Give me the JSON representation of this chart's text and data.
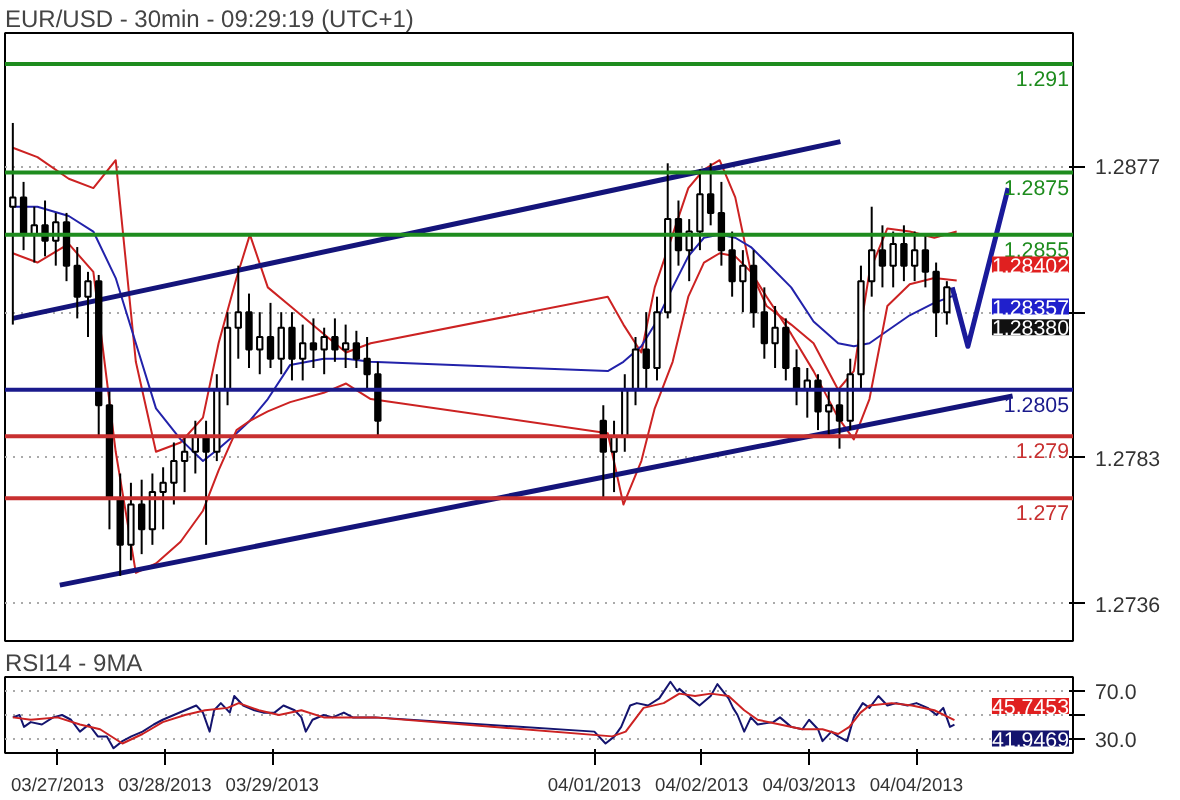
{
  "chart_data": [
    {
      "type": "candlestick",
      "title": "EUR/USD - 30min - 09:29:19 (UTC+1)",
      "color": "#000000",
      "x": [
        "2013-03-26T14:00",
        "2013-03-26T16:24",
        "2013-03-26T18:48",
        "2013-03-26T21:12",
        "2013-03-26T23:36",
        "2013-03-27T02:00",
        "2013-03-27T04:24",
        "2013-03-27T06:48",
        "2013-03-27T09:12",
        "2013-03-27T11:36",
        "2013-03-27T14:00",
        "2013-03-27T16:24",
        "2013-03-27T18:48",
        "2013-03-27T21:12",
        "2013-03-27T23:36",
        "2013-03-28T02:00",
        "2013-03-28T04:24",
        "2013-03-28T06:48",
        "2013-03-28T09:12",
        "2013-03-28T11:36",
        "2013-03-28T14:00",
        "2013-03-28T16:24",
        "2013-03-28T18:48",
        "2013-03-28T21:12",
        "2013-03-28T23:36",
        "2013-03-29T02:00",
        "2013-03-29T04:24",
        "2013-03-29T06:48",
        "2013-03-29T09:12",
        "2013-03-29T11:36",
        "2013-03-29T14:00",
        "2013-03-29T16:24",
        "2013-03-29T18:48",
        "2013-03-29T21:12",
        "2013-03-29T23:36",
        "2013-04-01T02:00",
        "2013-04-01T04:24",
        "2013-04-01T06:48",
        "2013-04-01T09:12",
        "2013-04-01T11:36",
        "2013-04-01T14:00",
        "2013-04-01T16:24",
        "2013-04-01T18:48",
        "2013-04-01T21:12",
        "2013-04-01T23:36",
        "2013-04-02T02:00",
        "2013-04-02T04:24",
        "2013-04-02T06:48",
        "2013-04-02T09:12",
        "2013-04-02T11:36",
        "2013-04-02T14:00",
        "2013-04-02T16:24",
        "2013-04-02T18:48",
        "2013-04-02T21:12",
        "2013-04-02T23:36",
        "2013-04-03T02:00",
        "2013-04-03T04:24",
        "2013-04-03T06:48",
        "2013-04-03T09:12",
        "2013-04-03T11:36",
        "2013-04-03T14:00",
        "2013-04-03T16:24",
        "2013-04-03T18:48",
        "2013-04-03T21:12",
        "2013-04-03T23:36",
        "2013-04-04T02:00",
        "2013-04-04T04:24",
        "2013-04-04T06:48"
      ],
      "ohlc": [
        [
          1.2864,
          1.2891,
          1.2826,
          1.2867
        ],
        [
          1.2867,
          1.2872,
          1.285,
          1.2855
        ],
        [
          1.2855,
          1.2864,
          1.2846,
          1.2858
        ],
        [
          1.2858,
          1.2866,
          1.2848,
          1.2853
        ],
        [
          1.2853,
          1.2862,
          1.2845,
          1.2859
        ],
        [
          1.2859,
          1.2862,
          1.284,
          1.2845
        ],
        [
          1.2845,
          1.2851,
          1.2828,
          1.2835
        ],
        [
          1.2835,
          1.2843,
          1.2822,
          1.284
        ],
        [
          1.284,
          1.2842,
          1.279,
          1.28
        ],
        [
          1.28,
          1.2805,
          1.276,
          1.277
        ],
        [
          1.277,
          1.2778,
          1.2745,
          1.2755
        ],
        [
          1.2755,
          1.2775,
          1.275,
          1.2768
        ],
        [
          1.2768,
          1.2776,
          1.2752,
          1.276
        ],
        [
          1.276,
          1.2778,
          1.2755,
          1.2772
        ],
        [
          1.2772,
          1.278,
          1.276,
          1.2775
        ],
        [
          1.2775,
          1.2788,
          1.2768,
          1.2782
        ],
        [
          1.2782,
          1.279,
          1.2772,
          1.2785
        ],
        [
          1.2785,
          1.2795,
          1.2778,
          1.279
        ],
        [
          1.279,
          1.2795,
          1.2755,
          1.2785
        ],
        [
          1.2785,
          1.281,
          1.2782,
          1.2805
        ],
        [
          1.2805,
          1.283,
          1.28,
          1.2825
        ],
        [
          1.2825,
          1.2845,
          1.2815,
          1.283
        ],
        [
          1.283,
          1.2836,
          1.2812,
          1.2818
        ],
        [
          1.2818,
          1.283,
          1.281,
          1.2822
        ],
        [
          1.2822,
          1.2833,
          1.2812,
          1.2815
        ],
        [
          1.2815,
          1.283,
          1.281,
          1.2825
        ],
        [
          1.2825,
          1.283,
          1.2808,
          1.2815
        ],
        [
          1.2815,
          1.2826,
          1.2808,
          1.282
        ],
        [
          1.282,
          1.2828,
          1.2812,
          1.2818
        ],
        [
          1.2818,
          1.2825,
          1.281,
          1.2822
        ],
        [
          1.2822,
          1.2828,
          1.2814,
          1.2818
        ],
        [
          1.2818,
          1.2826,
          1.2812,
          1.282
        ],
        [
          1.282,
          1.2824,
          1.2812,
          1.2815
        ],
        [
          1.2815,
          1.2822,
          1.2805,
          1.281
        ],
        [
          1.281,
          1.2814,
          1.279,
          1.2795
        ],
        [
          1.2795,
          1.28,
          1.277,
          1.2785
        ],
        [
          1.2785,
          1.2795,
          1.2772,
          1.279
        ],
        [
          1.279,
          1.281,
          1.2785,
          1.2805
        ],
        [
          1.2805,
          1.2822,
          1.28,
          1.2818
        ],
        [
          1.2818,
          1.283,
          1.2805,
          1.2812
        ],
        [
          1.2812,
          1.2835,
          1.2808,
          1.283
        ],
        [
          1.283,
          1.2878,
          1.2828,
          1.286
        ],
        [
          1.286,
          1.2866,
          1.2845,
          1.285
        ],
        [
          1.285,
          1.286,
          1.284,
          1.2856
        ],
        [
          1.2856,
          1.2876,
          1.285,
          1.2868
        ],
        [
          1.2868,
          1.2878,
          1.2858,
          1.2862
        ],
        [
          1.2862,
          1.2872,
          1.2845,
          1.285
        ],
        [
          1.285,
          1.2856,
          1.2835,
          1.284
        ],
        [
          1.284,
          1.285,
          1.283,
          1.2845
        ],
        [
          1.2845,
          1.285,
          1.2825,
          1.283
        ],
        [
          1.283,
          1.2838,
          1.2815,
          1.282
        ],
        [
          1.282,
          1.2832,
          1.2812,
          1.2825
        ],
        [
          1.2825,
          1.2828,
          1.2808,
          1.2812
        ],
        [
          1.2812,
          1.2818,
          1.28,
          1.2805
        ],
        [
          1.2805,
          1.2812,
          1.2796,
          1.2808
        ],
        [
          1.2808,
          1.281,
          1.2792,
          1.2798
        ],
        [
          1.2798,
          1.2805,
          1.279,
          1.28
        ],
        [
          1.28,
          1.2805,
          1.2786,
          1.2795
        ],
        [
          1.2795,
          1.2815,
          1.2792,
          1.281
        ],
        [
          1.281,
          1.2845,
          1.2805,
          1.284
        ],
        [
          1.284,
          1.2864,
          1.2835,
          1.285
        ],
        [
          1.285,
          1.2858,
          1.2838,
          1.2845
        ],
        [
          1.2845,
          1.2856,
          1.2838,
          1.2852
        ],
        [
          1.2852,
          1.2858,
          1.284,
          1.2845
        ],
        [
          1.2845,
          1.2856,
          1.284,
          1.285
        ],
        [
          1.285,
          1.2855,
          1.2838,
          1.2843
        ],
        [
          1.2843,
          1.2846,
          1.2822,
          1.283
        ],
        [
          1.283,
          1.284,
          1.2826,
          1.2838
        ]
      ],
      "series": [
        {
          "type": "line",
          "color": "#cc2222",
          "x": [
            "2013-03-26T14:00",
            "2013-03-26T19:30",
            "2013-03-27T02:30",
            "2013-03-27T08:00",
            "2013-03-27T13:00",
            "2013-03-27T17:30",
            "2013-03-27T22:00",
            "2013-03-28T03:30",
            "2013-03-28T08:30",
            "2013-03-28T12:00",
            "2013-03-28T16:00",
            "2013-03-28T19:00",
            "2013-03-28T23:00",
            "2013-03-29T04:00",
            "2013-03-29T11:30",
            "2013-03-29T16:30",
            "2013-03-29T22:00",
            "2013-04-01T03:00",
            "2013-04-01T06:30",
            "2013-04-01T10:30",
            "2013-04-01T13:30",
            "2013-04-01T17:30",
            "2013-04-01T21:00",
            "2013-04-02T00:30",
            "2013-04-02T04:00",
            "2013-04-02T07:30",
            "2013-04-02T11:00",
            "2013-04-02T14:30",
            "2013-04-02T20:00",
            "2013-04-03T01:00",
            "2013-04-03T06:30",
            "2013-04-03T10:00",
            "2013-04-03T13:30",
            "2013-04-03T17:30",
            "2013-04-03T22:30",
            "2013-04-04T04:00",
            "2013-04-04T09:00"
          ],
          "values": [
            1.2883,
            1.288,
            1.2873,
            1.287,
            1.2879,
            1.2814,
            1.2785,
            1.2788,
            1.2796,
            1.282,
            1.2841,
            1.2855,
            1.2838,
            1.2832,
            1.2823,
            1.2817,
            1.282,
            1.2835,
            1.2826,
            1.2817,
            1.2838,
            1.2855,
            1.287,
            1.2876,
            1.2879,
            1.2867,
            1.2843,
            1.2832,
            1.2826,
            1.282,
            1.2805,
            1.2811,
            1.2843,
            1.2857,
            1.2856,
            1.2854,
            1.2856
          ]
        },
        {
          "type": "line",
          "color": "#2222aa",
          "x": [
            "2013-03-26T14:00",
            "2013-03-26T19:30",
            "2013-03-27T02:30",
            "2013-03-27T08:00",
            "2013-03-27T13:00",
            "2013-03-27T17:30",
            "2013-03-27T22:00",
            "2013-03-28T03:30",
            "2013-03-28T08:30",
            "2013-03-28T12:00",
            "2013-03-28T16:00",
            "2013-03-28T19:00",
            "2013-03-28T23:00",
            "2013-03-29T04:00",
            "2013-03-29T11:30",
            "2013-03-29T16:30",
            "2013-03-29T22:00",
            "2013-04-01T03:00",
            "2013-04-01T06:30",
            "2013-04-01T10:30",
            "2013-04-01T13:30",
            "2013-04-01T17:30",
            "2013-04-01T21:00",
            "2013-04-02T00:30",
            "2013-04-02T04:00",
            "2013-04-02T07:30",
            "2013-04-02T11:00",
            "2013-04-02T14:30",
            "2013-04-02T20:00",
            "2013-04-03T01:00",
            "2013-04-03T06:30",
            "2013-04-03T10:00",
            "2013-04-03T13:30",
            "2013-04-03T17:30",
            "2013-04-03T22:30",
            "2013-04-04T04:00",
            "2013-04-04T09:00"
          ],
          "values": [
            1.2864,
            1.2864,
            1.2861,
            1.2856,
            1.2841,
            1.282,
            1.2799,
            1.2789,
            1.2782,
            1.2786,
            1.2791,
            1.2795,
            1.2802,
            1.2813,
            1.2815,
            1.2815,
            1.2814,
            1.2811,
            1.2814,
            1.2819,
            1.2826,
            1.2838,
            1.2848,
            1.2854,
            1.2855,
            1.2854,
            1.2851,
            1.2846,
            1.2838,
            1.2827,
            1.282,
            1.2819,
            1.282,
            1.2824,
            1.2829,
            1.2833,
            1.28357
          ]
        },
        {
          "type": "line",
          "color": "#cc2222",
          "x": [
            "2013-03-26T14:00",
            "2013-03-26T19:30",
            "2013-03-27T02:30",
            "2013-03-27T08:00",
            "2013-03-27T13:00",
            "2013-03-27T17:30",
            "2013-03-27T22:00",
            "2013-03-28T03:30",
            "2013-03-28T08:30",
            "2013-03-28T12:00",
            "2013-03-28T16:00",
            "2013-03-28T19:00",
            "2013-03-28T23:00",
            "2013-03-29T04:00",
            "2013-03-29T11:30",
            "2013-03-29T16:30",
            "2013-03-29T22:00",
            "2013-04-01T03:00",
            "2013-04-01T06:30",
            "2013-04-01T10:30",
            "2013-04-01T13:30",
            "2013-04-01T17:30",
            "2013-04-01T21:00",
            "2013-04-02T00:30",
            "2013-04-02T04:00",
            "2013-04-02T07:30",
            "2013-04-02T11:00",
            "2013-04-02T14:30",
            "2013-04-02T20:00",
            "2013-04-03T01:00",
            "2013-04-03T06:30",
            "2013-04-03T10:00",
            "2013-04-03T13:30",
            "2013-04-03T17:30",
            "2013-04-03T22:30",
            "2013-04-04T04:00",
            "2013-04-04T09:00"
          ],
          "values": [
            1.2849,
            1.2846,
            1.2852,
            1.2843,
            1.2785,
            1.2746,
            1.2749,
            1.2756,
            1.2766,
            1.2779,
            1.2792,
            1.2795,
            1.2798,
            1.2801,
            1.2804,
            1.2807,
            1.2802,
            1.2791,
            1.2768,
            1.2782,
            1.2799,
            1.2814,
            1.2835,
            1.2846,
            1.2849,
            1.2848,
            1.2843,
            1.2835,
            1.2823,
            1.2811,
            1.2796,
            1.2789,
            1.2802,
            1.2832,
            1.2839,
            1.2841,
            1.28402
          ]
        },
        {
          "type": "line",
          "color": "#14147a",
          "x": [
            "2013-03-26T14:00",
            "2013-04-03T07:00"
          ],
          "values": [
            1.2828,
            1.2885
          ]
        },
        {
          "type": "line",
          "color": "#14147a",
          "x": [
            "2013-03-27T00:30",
            "2013-04-04T21:30"
          ],
          "values": [
            1.2742,
            1.2803
          ]
        },
        {
          "type": "line",
          "color": "#1a1a9a",
          "x": [
            "2013-04-04T08:00",
            "2013-04-04T11:30",
            "2013-04-04T20:30"
          ],
          "values": [
            1.2838,
            1.2819,
            1.287
          ]
        }
      ],
      "ref_lines": [
        {
          "axis": "y",
          "value": 1.291,
          "label": "1.291",
          "color": "#1e8c1e"
        },
        {
          "axis": "y",
          "value": 1.2875,
          "label": "1.2875",
          "color": "#1e8c1e"
        },
        {
          "axis": "y",
          "value": 1.2855,
          "label": "1.2855",
          "color": "#1e8c1e"
        },
        {
          "axis": "y",
          "value": 1.2805,
          "label": "1.2805",
          "color": "#1a1a8c"
        },
        {
          "axis": "y",
          "value": 1.279,
          "label": "1.279",
          "color": "#c83030"
        },
        {
          "axis": "y",
          "value": 1.277,
          "label": "1.277",
          "color": "#c83030"
        }
      ],
      "annotations": [
        {
          "text": "1.28402",
          "x": "2013-04-04T09:00",
          "y": 1.28402
        },
        {
          "text": "1.28357",
          "x": "2013-04-04T09:00",
          "y": 1.28357
        },
        {
          "text": "1.28380",
          "x": "2013-04-04T06:48",
          "y": 1.2838
        }
      ],
      "xlim": [
        "2013-03-26T12:15",
        "2013-04-05T11:00"
      ],
      "ylim": [
        1.2724,
        1.292
      ],
      "yticks": [
        1.2877,
        {
          "value": 1.283,
          "label": null
        },
        1.2783,
        1.2736
      ],
      "grid": "y",
      "tick_labels": "y"
    },
    {
      "type": "line",
      "title": "RSI14 - 9MA",
      "series": [
        {
          "color": "#14146e",
          "x": [
            "2013-03-26T14:00",
            "2013-03-26T15:30",
            "2013-03-26T16:30",
            "2013-03-26T18:00",
            "2013-03-26T20:30",
            "2013-03-26T23:00",
            "2013-03-27T01:00",
            "2013-03-27T03:00",
            "2013-03-27T05:00",
            "2013-03-27T07:00",
            "2013-03-27T09:00",
            "2013-03-27T11:00",
            "2013-03-27T12:30",
            "2013-03-27T14:30",
            "2013-03-27T16:30",
            "2013-03-27T19:00",
            "2013-03-27T21:30",
            "2013-03-27T23:30",
            "2013-03-28T02:00",
            "2013-03-28T04:30",
            "2013-03-28T07:00",
            "2013-03-28T08:30",
            "2013-03-28T10:00",
            "2013-03-28T11:00",
            "2013-03-28T12:30",
            "2013-03-28T14:30",
            "2013-03-28T15:30",
            "2013-03-28T17:30",
            "2013-03-28T20:00",
            "2013-03-28T22:00",
            "2013-03-29T00:30",
            "2013-03-29T02:30",
            "2013-03-29T05:00",
            "2013-03-29T06:30",
            "2013-03-29T07:30",
            "2013-03-29T09:00",
            "2013-03-29T11:30",
            "2013-03-29T13:30",
            "2013-03-29T16:00",
            "2013-03-29T18:00",
            "2013-03-29T20:30",
            "2013-03-29T23:00",
            "2013-04-01T00:00",
            "2013-04-01T02:30",
            "2013-04-01T04:30",
            "2013-04-01T06:00",
            "2013-04-01T08:00",
            "2013-04-01T09:30",
            "2013-04-01T12:00",
            "2013-04-01T14:30",
            "2013-04-01T17:00",
            "2013-04-01T18:30",
            "2013-04-01T19:00",
            "2013-04-01T21:30",
            "2013-04-01T23:30",
            "2013-04-02T02:00",
            "2013-04-02T03:30",
            "2013-04-02T06:00",
            "2013-04-02T07:00",
            "2013-04-02T08:00",
            "2013-04-02T09:30",
            "2013-04-02T11:00",
            "2013-04-02T12:30",
            "2013-04-02T16:00",
            "2013-04-02T17:30",
            "2013-04-02T20:00",
            "2013-04-02T22:30",
            "2013-04-03T00:00",
            "2013-04-03T02:00",
            "2013-04-03T03:00",
            "2013-04-03T05:00",
            "2013-04-03T06:30",
            "2013-04-03T08:30",
            "2013-04-03T10:00",
            "2013-04-03T12:00",
            "2013-04-03T13:30",
            "2013-04-03T15:30",
            "2013-04-03T17:30",
            "2013-04-03T19:30",
            "2013-04-03T22:00",
            "2013-04-04T00:00",
            "2013-04-04T02:30",
            "2013-04-04T04:30",
            "2013-04-04T06:00",
            "2013-04-04T07:30",
            "2013-04-04T08:30"
          ],
          "values": [
            48,
            50,
            40,
            44,
            42,
            48,
            50,
            46,
            36,
            42,
            32,
            32,
            22,
            28,
            32,
            36,
            42,
            46,
            50,
            54,
            58,
            52,
            36,
            54,
            60,
            52,
            66,
            58,
            54,
            52,
            52,
            58,
            54,
            48,
            36,
            46,
            50,
            48,
            52,
            48,
            48,
            48,
            36,
            26,
            32,
            40,
            58,
            60,
            58,
            64,
            78,
            70,
            72,
            64,
            58,
            66,
            76,
            64,
            56,
            50,
            36,
            48,
            42,
            44,
            48,
            40,
            38,
            46,
            38,
            28,
            36,
            32,
            28,
            48,
            60,
            56,
            66,
            58,
            60,
            58,
            60,
            56,
            50,
            56,
            40,
            41.9469
          ]
        },
        {
          "color": "#cc2222",
          "x": [
            "2013-03-26T14:00",
            "2013-03-26T18:00",
            "2013-03-27T00:00",
            "2013-03-27T05:00",
            "2013-03-27T09:30",
            "2013-03-27T14:30",
            "2013-03-27T19:00",
            "2013-03-27T23:30",
            "2013-03-28T04:30",
            "2013-03-28T09:00",
            "2013-03-28T14:00",
            "2013-03-28T16:30",
            "2013-03-28T21:00",
            "2013-03-29T01:30",
            "2013-03-29T06:30",
            "2013-03-29T11:30",
            "2013-03-29T17:00",
            "2013-03-29T23:00",
            "2013-04-01T04:00",
            "2013-04-01T07:00",
            "2013-04-01T11:00",
            "2013-04-01T15:30",
            "2013-04-01T19:00",
            "2013-04-01T22:30",
            "2013-04-02T02:00",
            "2013-04-02T06:00",
            "2013-04-02T09:30",
            "2013-04-02T12:30",
            "2013-04-02T17:30",
            "2013-04-02T22:30",
            "2013-04-03T03:00",
            "2013-04-03T06:30",
            "2013-04-03T09:00",
            "2013-04-03T11:30",
            "2013-04-03T13:30",
            "2013-04-03T18:30",
            "2013-04-03T23:00",
            "2013-04-04T04:00",
            "2013-04-04T08:30"
          ],
          "values": [
            48,
            46,
            48,
            42,
            38,
            26,
            34,
            44,
            50,
            54,
            56,
            60,
            54,
            50,
            54,
            48,
            48,
            48,
            32,
            36,
            56,
            60,
            68,
            66,
            68,
            66,
            54,
            46,
            42,
            38,
            38,
            34,
            40,
            52,
            58,
            60,
            58,
            54,
            45.7453
          ]
        }
      ],
      "annotations": [
        {
          "text": "45.7453",
          "x": "2013-04-04T08:30",
          "y": 45.7453
        },
        {
          "text": "41.9469",
          "x": "2013-04-04T08:30",
          "y": 41.9469
        }
      ],
      "xlim": [
        "2013-03-26T12:15",
        "2013-04-05T11:00"
      ],
      "ylim": [
        18,
        82
      ],
      "xticks": [
        {
          "value": "2013-03-27",
          "label": "03/27/2013"
        },
        {
          "value": "2013-03-28",
          "label": "03/28/2013"
        },
        {
          "value": "2013-03-29",
          "label": "03/29/2013"
        },
        {
          "value": "2013-04-01",
          "label": "04/01/2013"
        },
        {
          "value": "2013-04-02",
          "label": "04/02/2013"
        },
        {
          "value": "2013-04-03",
          "label": "04/03/2013"
        },
        {
          "value": "2013-04-04",
          "label": "04/04/2013"
        }
      ],
      "yticks": [
        {
          "value": 70,
          "label": "70.0"
        },
        {
          "value": 50,
          "label": null
        },
        {
          "value": 30,
          "label": "30.0"
        }
      ],
      "grid": "y"
    }
  ]
}
